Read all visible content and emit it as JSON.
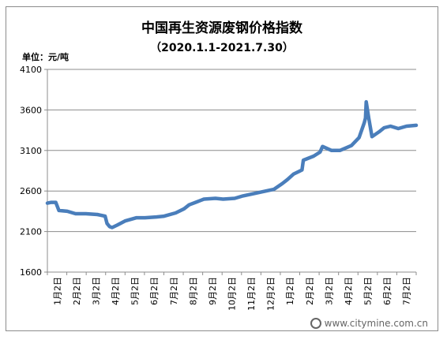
{
  "chart_data": {
    "type": "line",
    "title": "中国再生资源废钢价格指数",
    "subtitle": "（2020.1.1-2021.7.30）",
    "ylabel": "单位：元/吨",
    "xlabel": "",
    "ylim": [
      1600,
      4100
    ],
    "yticks": [
      1600,
      2100,
      2600,
      3100,
      3600,
      4100
    ],
    "x_tick_labels": [
      "1月2日",
      "2月2日",
      "3月2日",
      "4月2日",
      "5月2日",
      "6月2日",
      "7月2日",
      "8月2日",
      "9月2日",
      "10月2日",
      "11月2日",
      "12月2日",
      "1月2日",
      "2月2日",
      "3月2日",
      "4月2日",
      "5月2日",
      "6月2日",
      "7月2日"
    ],
    "grid": true,
    "legend": "none",
    "line_color": "#4a7ebb",
    "series": [
      {
        "x": [
          "2020-01-02",
          "2020-01-08",
          "2020-01-15",
          "2020-01-20",
          "2020-02-02",
          "2020-02-15",
          "2020-03-02",
          "2020-03-20",
          "2020-04-01",
          "2020-04-04",
          "2020-04-08",
          "2020-04-12",
          "2020-04-20",
          "2020-05-02",
          "2020-05-20",
          "2020-06-02",
          "2020-06-20",
          "2020-07-02",
          "2020-07-20",
          "2020-08-02",
          "2020-08-10",
          "2020-08-20",
          "2020-09-02",
          "2020-09-20",
          "2020-10-02",
          "2020-10-20",
          "2020-11-02",
          "2020-11-20",
          "2020-12-02",
          "2020-12-20",
          "2021-01-02",
          "2021-01-10",
          "2021-01-20",
          "2021-02-02",
          "2021-02-04",
          "2021-02-20",
          "2021-03-02",
          "2021-03-06",
          "2021-03-20",
          "2021-04-02",
          "2021-04-20",
          "2021-05-02",
          "2021-05-10",
          "2021-05-12",
          "2021-05-13",
          "2021-05-17",
          "2021-05-22",
          "2021-06-02",
          "2021-06-10",
          "2021-06-20",
          "2021-07-02",
          "2021-07-15",
          "2021-07-30"
        ],
        "y": [
          2450,
          2460,
          2460,
          2360,
          2350,
          2320,
          2320,
          2310,
          2290,
          2200,
          2160,
          2150,
          2180,
          2230,
          2270,
          2270,
          2280,
          2290,
          2330,
          2380,
          2430,
          2460,
          2500,
          2510,
          2500,
          2510,
          2540,
          2570,
          2590,
          2620,
          2690,
          2740,
          2810,
          2860,
          2980,
          3030,
          3080,
          3150,
          3100,
          3100,
          3160,
          3260,
          3440,
          3500,
          3700,
          3500,
          3270,
          3330,
          3380,
          3400,
          3370,
          3400,
          3410
        ]
      }
    ]
  },
  "watermark": {
    "text": "www.citymine.com.cn"
  }
}
